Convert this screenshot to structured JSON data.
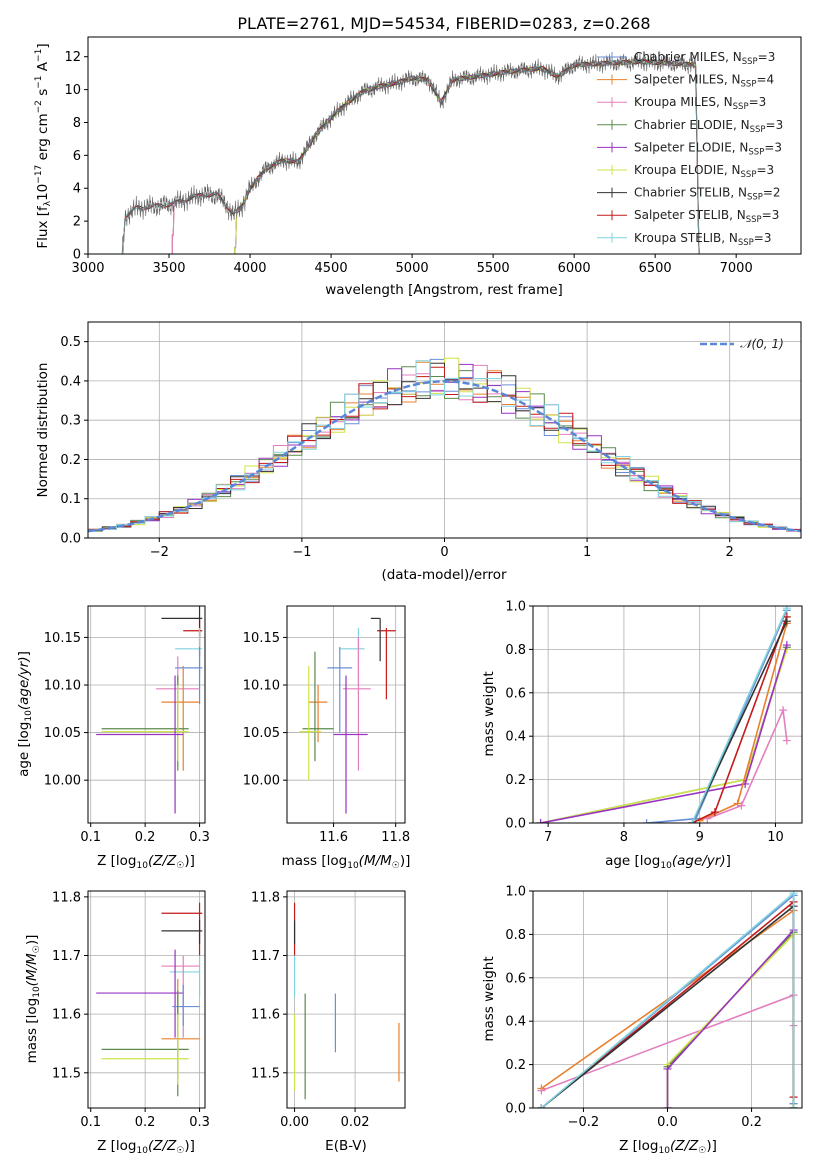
{
  "colors": {
    "Chabrier MILES": "#6a8fd6",
    "Salpeter MILES": "#e8812e",
    "Kroupa MILES": "#e47fbf",
    "Chabrier ELODIE": "#5b8a4c",
    "Salpeter ELODIE": "#9a33c2",
    "Kroupa ELODIE": "#cfe34a",
    "Chabrier STELIB": "#333333",
    "Salpeter STELIB": "#c41a1a",
    "Kroupa STELIB": "#7fd3df",
    "gaussian": "#5b87d8",
    "spectrum": "#666666"
  },
  "chart_data": [
    {
      "id": "spectrum",
      "type": "line",
      "title": "PLATE=2761, MJD=54534, FIBERID=0283, z=0.268",
      "xlabel": "wavelength [Angstrom, rest frame]",
      "ylabel": "Flux [f_λ 10^-17 erg cm^-2 s^-1 A^-1]",
      "xlim": [
        3000,
        7400
      ],
      "ylim": [
        0,
        13.2
      ],
      "xticks": [
        3000,
        3500,
        4000,
        4500,
        5000,
        5500,
        6000,
        6500,
        7000
      ],
      "yticks": [
        0,
        2,
        4,
        6,
        8,
        10,
        12
      ],
      "grid": false,
      "legend": "upper right",
      "continuum": [
        [
          3210,
          0
        ],
        [
          3230,
          2.3
        ],
        [
          3300,
          2.8
        ],
        [
          3400,
          2.9
        ],
        [
          3500,
          3.0
        ],
        [
          3600,
          3.3
        ],
        [
          3700,
          3.6
        ],
        [
          3800,
          3.6
        ],
        [
          3850,
          3.0
        ],
        [
          3900,
          2.4
        ],
        [
          3950,
          2.9
        ],
        [
          4000,
          4.0
        ],
        [
          4100,
          5.2
        ],
        [
          4200,
          5.7
        ],
        [
          4300,
          5.6
        ],
        [
          4400,
          7.2
        ],
        [
          4500,
          8.3
        ],
        [
          4600,
          9.2
        ],
        [
          4700,
          9.9
        ],
        [
          4800,
          10.2
        ],
        [
          4900,
          10.4
        ],
        [
          5000,
          10.7
        ],
        [
          5100,
          10.6
        ],
        [
          5180,
          9.2
        ],
        [
          5250,
          10.6
        ],
        [
          5400,
          10.8
        ],
        [
          5600,
          11.1
        ],
        [
          5800,
          11.3
        ],
        [
          5900,
          10.8
        ],
        [
          6000,
          11.5
        ],
        [
          6200,
          11.6
        ],
        [
          6400,
          11.7
        ],
        [
          6600,
          11.6
        ],
        [
          6750,
          11.5
        ],
        [
          6770,
          0
        ]
      ],
      "model_starts": {
        "Chabrier MILES": 3520,
        "Salpeter MILES": 3520,
        "Kroupa MILES": 3520,
        "Chabrier ELODIE": 3905,
        "Salpeter ELODIE": 3905,
        "Kroupa ELODIE": 3905,
        "Chabrier STELIB": 3210,
        "Salpeter STELIB": 3210,
        "Kroupa STELIB": 3210
      },
      "series": [
        {
          "name": "Chabrier MILES",
          "nssp": "3"
        },
        {
          "name": "Salpeter MILES",
          "nssp": "4"
        },
        {
          "name": "Kroupa MILES",
          "nssp": "3"
        },
        {
          "name": "Chabrier ELODIE",
          "nssp": "3"
        },
        {
          "name": "Salpeter ELODIE",
          "nssp": "3"
        },
        {
          "name": "Kroupa ELODIE",
          "nssp": "3"
        },
        {
          "name": "Chabrier STELIB",
          "nssp": "2"
        },
        {
          "name": "Salpeter STELIB",
          "nssp": "3"
        },
        {
          "name": "Kroupa STELIB",
          "nssp": "3"
        }
      ]
    },
    {
      "id": "residuals",
      "type": "line",
      "xlabel": "(data-model)/error",
      "ylabel": "Normed distribution",
      "xlim": [
        -2.5,
        2.5
      ],
      "ylim": [
        0,
        0.55
      ],
      "xticks": [
        -2,
        -1,
        0,
        1,
        2
      ],
      "yticks": [
        0.0,
        0.1,
        0.2,
        0.3,
        0.4,
        0.5
      ],
      "grid": true,
      "legend": "upper right",
      "gaussian_label": "N(0,1)",
      "bin_width": 0.1
    },
    {
      "id": "age_vs_Z",
      "type": "scatter",
      "xlabel": "Z [log10(Z/Z☉)]",
      "ylabel": "age [log10(age/yr)]",
      "xlim": [
        0.095,
        0.31
      ],
      "ylim": [
        9.955,
        10.183
      ],
      "xticks": [
        0.1,
        0.2,
        0.3
      ],
      "yticks": [
        10.0,
        10.05,
        10.1,
        10.15
      ],
      "grid": true,
      "points": [
        {
          "name": "Salpeter STELIB",
          "x": 0.3,
          "y": 10.157,
          "xerr": [
            0.27,
            0.305
          ],
          "yerr": [
            10.13,
            10.17
          ]
        },
        {
          "name": "Chabrier STELIB",
          "x": 0.3,
          "y": 10.17,
          "xerr": [
            0.23,
            0.305
          ],
          "yerr": [
            10.15,
            10.19
          ]
        },
        {
          "name": "Kroupa STELIB",
          "x": 0.3,
          "y": 10.138,
          "xerr": [
            0.255,
            0.305
          ],
          "yerr": [
            10.11,
            10.16
          ]
        },
        {
          "name": "Chabrier MILES",
          "x": 0.3,
          "y": 10.118,
          "xerr": [
            0.255,
            0.305
          ],
          "yerr": [
            10.08,
            10.14
          ]
        },
        {
          "name": "Kroupa MILES",
          "x": 0.26,
          "y": 10.096,
          "xerr": [
            0.22,
            0.3
          ],
          "yerr": [
            10.02,
            10.13
          ]
        },
        {
          "name": "Salpeter MILES",
          "x": 0.27,
          "y": 10.082,
          "xerr": [
            0.23,
            0.3
          ],
          "yerr": [
            10.01,
            10.12
          ]
        },
        {
          "name": "Chabrier ELODIE",
          "x": 0.26,
          "y": 10.054,
          "xerr": [
            0.12,
            0.28
          ],
          "yerr": [
            10.01,
            10.11
          ]
        },
        {
          "name": "Kroupa ELODIE",
          "x": 0.26,
          "y": 10.051,
          "xerr": [
            0.12,
            0.28
          ],
          "yerr": [
            10.02,
            10.1
          ]
        },
        {
          "name": "Salpeter ELODIE",
          "x": 0.255,
          "y": 10.048,
          "xerr": [
            0.11,
            0.27
          ],
          "yerr": [
            9.965,
            10.11
          ]
        }
      ]
    },
    {
      "id": "age_vs_mass",
      "type": "scatter",
      "xlabel": "mass [log10(M/M☉)]",
      "ylabel": "",
      "xlim": [
        11.45,
        11.83
      ],
      "ylim": [
        9.955,
        10.183
      ],
      "xticks": [
        11.6,
        11.8
      ],
      "yticks": [
        10.0,
        10.05,
        10.1,
        10.15
      ],
      "grid": true,
      "points": [
        {
          "name": "Salpeter STELIB",
          "x": 11.77,
          "y": 10.157,
          "xerr": [
            11.74,
            11.8
          ],
          "yerr": [
            10.085,
            10.16
          ]
        },
        {
          "name": "Chabrier STELIB",
          "x": 11.75,
          "y": 10.17,
          "xerr": [
            11.72,
            11.75
          ],
          "yerr": [
            10.125,
            10.17
          ]
        },
        {
          "name": "Kroupa STELIB",
          "x": 11.68,
          "y": 10.138,
          "xerr": [
            11.62,
            11.7
          ],
          "yerr": [
            10.1,
            10.16
          ]
        },
        {
          "name": "Chabrier MILES",
          "x": 11.62,
          "y": 10.118,
          "xerr": [
            11.58,
            11.66
          ],
          "yerr": [
            10.05,
            10.14
          ]
        },
        {
          "name": "Kroupa MILES",
          "x": 11.68,
          "y": 10.096,
          "xerr": [
            11.63,
            11.72
          ],
          "yerr": [
            10.01,
            10.15
          ]
        },
        {
          "name": "Salpeter MILES",
          "x": 11.55,
          "y": 10.082,
          "xerr": [
            11.52,
            11.58
          ],
          "yerr": [
            10.04,
            10.1
          ]
        },
        {
          "name": "Chabrier ELODIE",
          "x": 11.54,
          "y": 10.054,
          "xerr": [
            11.5,
            11.6
          ],
          "yerr": [
            10.02,
            10.135
          ]
        },
        {
          "name": "Kroupa ELODIE",
          "x": 11.52,
          "y": 10.051,
          "xerr": [
            11.49,
            11.56
          ],
          "yerr": [
            10.0,
            10.12
          ]
        },
        {
          "name": "Salpeter ELODIE",
          "x": 11.64,
          "y": 10.048,
          "xerr": [
            11.6,
            11.71
          ],
          "yerr": [
            9.965,
            10.11
          ]
        }
      ]
    },
    {
      "id": "mass_weight_vs_age",
      "type": "line",
      "xlabel": "age [log10(age/yr)]",
      "ylabel": "mass weight",
      "xlim": [
        6.8,
        10.35
      ],
      "ylim": [
        0,
        1.0
      ],
      "xticks": [
        7,
        8,
        9,
        10
      ],
      "yticks": [
        0.0,
        0.2,
        0.4,
        0.6,
        0.8,
        1.0
      ],
      "grid": true,
      "series": [
        {
          "name": "Chabrier ELODIE",
          "x": [
            6.9,
            9.6,
            10.15
          ],
          "y": [
            0.0,
            0.2,
            0.81
          ]
        },
        {
          "name": "Kroupa ELODIE",
          "x": [
            6.9,
            9.6,
            10.15
          ],
          "y": [
            0.0,
            0.2,
            0.8
          ]
        },
        {
          "name": "Salpeter ELODIE",
          "x": [
            6.9,
            9.6,
            10.15
          ],
          "y": [
            0.0,
            0.18,
            0.82
          ]
        },
        {
          "name": "Salpeter MILES",
          "x": [
            9.0,
            9.5,
            10.15
          ],
          "y": [
            0.01,
            0.09,
            0.92
          ]
        },
        {
          "name": "Kroupa MILES",
          "x": [
            9.1,
            9.55,
            10.1,
            10.15
          ],
          "y": [
            0.02,
            0.08,
            0.52,
            0.38
          ]
        },
        {
          "name": "Chabrier MILES",
          "x": [
            8.3,
            8.95,
            10.15
          ],
          "y": [
            0.0,
            0.02,
            0.98
          ]
        },
        {
          "name": "Salpeter STELIB",
          "x": [
            8.9,
            9.2,
            10.15
          ],
          "y": [
            0.0,
            0.05,
            0.95
          ]
        },
        {
          "name": "Chabrier STELIB",
          "x": [
            8.9,
            10.15
          ],
          "y": [
            0.0,
            0.93
          ]
        },
        {
          "name": "Kroupa STELIB",
          "x": [
            8.9,
            10.15
          ],
          "y": [
            0.0,
            0.99
          ]
        }
      ]
    },
    {
      "id": "mass_vs_Z",
      "type": "scatter",
      "xlabel": "Z [log10(Z/Z☉)]",
      "ylabel": "mass [log10(M/M☉)]",
      "xlim": [
        0.095,
        0.31
      ],
      "ylim": [
        11.44,
        11.81
      ],
      "xticks": [
        0.1,
        0.2,
        0.3
      ],
      "yticks": [
        11.5,
        11.6,
        11.7,
        11.8
      ],
      "grid": true,
      "points": [
        {
          "name": "Salpeter STELIB",
          "x": 0.3,
          "y": 11.772,
          "xerr": [
            0.23,
            0.305
          ],
          "yerr": [
            11.7,
            11.79
          ]
        },
        {
          "name": "Chabrier STELIB",
          "x": 0.3,
          "y": 11.742,
          "xerr": [
            0.23,
            0.305
          ],
          "yerr": [
            11.72,
            11.76
          ]
        },
        {
          "name": "Kroupa STELIB",
          "x": 0.3,
          "y": 11.672,
          "xerr": [
            0.245,
            0.3
          ],
          "yerr": [
            11.63,
            11.7
          ]
        },
        {
          "name": "Kroupa MILES",
          "x": 0.27,
          "y": 11.682,
          "xerr": [
            0.23,
            0.3
          ],
          "yerr": [
            11.56,
            11.7
          ]
        },
        {
          "name": "Salpeter ELODIE",
          "x": 0.255,
          "y": 11.636,
          "xerr": [
            0.11,
            0.27
          ],
          "yerr": [
            11.56,
            11.71
          ]
        },
        {
          "name": "Chabrier MILES",
          "x": 0.27,
          "y": 11.613,
          "xerr": [
            0.25,
            0.3
          ],
          "yerr": [
            11.58,
            11.65
          ]
        },
        {
          "name": "Salpeter MILES",
          "x": 0.26,
          "y": 11.558,
          "xerr": [
            0.23,
            0.3
          ],
          "yerr": [
            11.49,
            11.66
          ]
        },
        {
          "name": "Chabrier ELODIE",
          "x": 0.26,
          "y": 11.54,
          "xerr": [
            0.12,
            0.28
          ],
          "yerr": [
            11.46,
            11.64
          ]
        },
        {
          "name": "Kroupa ELODIE",
          "x": 0.26,
          "y": 11.524,
          "xerr": [
            0.12,
            0.28
          ],
          "yerr": [
            11.48,
            11.6
          ]
        }
      ]
    },
    {
      "id": "mass_vs_EBV",
      "type": "scatter",
      "xlabel": "E(B-V)",
      "ylabel": "",
      "xlim": [
        -0.0025,
        0.0365
      ],
      "ylim": [
        11.44,
        11.81
      ],
      "xticks": [
        0.0,
        0.02
      ],
      "yticks": [
        11.5,
        11.6,
        11.7,
        11.8
      ],
      "grid": true,
      "points": [
        {
          "name": "Salpeter STELIB",
          "x": 0.0,
          "yerr": [
            11.7,
            11.79
          ]
        },
        {
          "name": "Chabrier STELIB",
          "x": 0.0,
          "yerr": [
            11.72,
            11.76
          ]
        },
        {
          "name": "Kroupa STELIB",
          "x": 0.0,
          "yerr": [
            11.63,
            11.7
          ]
        },
        {
          "name": "Kroupa ELODIE",
          "x": 0.0,
          "yerr": [
            11.47,
            11.6
          ]
        },
        {
          "name": "Chabrier ELODIE",
          "x": 0.0035,
          "yerr": [
            11.455,
            11.635
          ]
        },
        {
          "name": "Chabrier MILES",
          "x": 0.0135,
          "yerr": [
            11.535,
            11.635
          ]
        },
        {
          "name": "Salpeter MILES",
          "x": 0.0345,
          "yerr": [
            11.485,
            11.585
          ]
        }
      ]
    },
    {
      "id": "mass_weight_vs_Z",
      "type": "line",
      "xlabel": "Z [log10(Z/Z☉)]",
      "ylabel": "mass weight",
      "xlim": [
        -0.32,
        0.32
      ],
      "ylim": [
        0,
        1.0
      ],
      "xticks": [
        -0.2,
        0.0,
        0.2
      ],
      "yticks": [
        0.0,
        0.2,
        0.4,
        0.6,
        0.8,
        1.0
      ],
      "grid": true,
      "series": [
        {
          "name": "Salpeter MILES",
          "x": [
            -0.3,
            0.3,
            0.3
          ],
          "y": [
            0.09,
            0.91,
            0.02
          ]
        },
        {
          "name": "Kroupa MILES",
          "x": [
            -0.3,
            0.3,
            0.3
          ],
          "y": [
            0.08,
            0.52,
            0.38
          ]
        },
        {
          "name": "Chabrier MILES",
          "x": [
            -0.3,
            0.3,
            0.3
          ],
          "y": [
            0.0,
            0.98,
            0.02
          ]
        },
        {
          "name": "Chabrier ELODIE",
          "x": [
            0.0,
            0.0,
            0.3,
            0.3
          ],
          "y": [
            0.0,
            0.19,
            0.81,
            0.0
          ]
        },
        {
          "name": "Kroupa ELODIE",
          "x": [
            0.0,
            0.0,
            0.3,
            0.3
          ],
          "y": [
            0.0,
            0.2,
            0.8,
            0.0
          ]
        },
        {
          "name": "Salpeter ELODIE",
          "x": [
            0.0,
            0.0,
            0.3
          ],
          "y": [
            0.0,
            0.18,
            0.82
          ]
        },
        {
          "name": "Salpeter STELIB",
          "x": [
            -0.3,
            0.3,
            0.3
          ],
          "y": [
            0.0,
            0.95,
            0.05
          ]
        },
        {
          "name": "Chabrier STELIB",
          "x": [
            -0.3,
            0.3,
            0.3
          ],
          "y": [
            0.0,
            0.93,
            0.0
          ]
        },
        {
          "name": "Kroupa STELIB",
          "x": [
            -0.3,
            0.3,
            0.3
          ],
          "y": [
            0.0,
            0.99,
            0.0
          ]
        }
      ]
    }
  ]
}
